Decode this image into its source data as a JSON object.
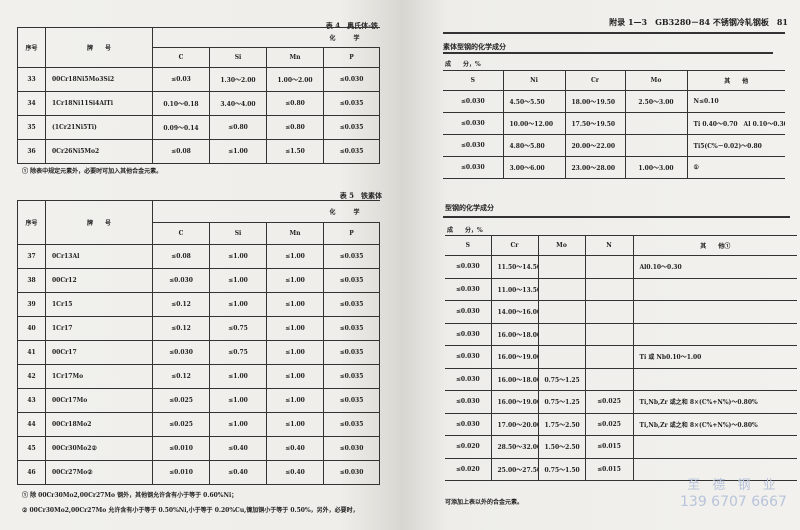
{
  "left_page": {
    "table4": {
      "caption": "表 4　奥氏体-铁",
      "header": {
        "no": "序号",
        "grade": "牌　　号",
        "group": "化　　　学",
        "cols": [
          "C",
          "Si",
          "Mn",
          "P"
        ]
      },
      "rows": [
        [
          "33",
          "00Cr18Ni5Mo3Si2",
          "≤0.03",
          "1.30～2.00",
          "1.00～2.00",
          "≤0.030"
        ],
        [
          "34",
          "1Cr18Ni11Si4AlTi",
          "0.10～0.18",
          "3.40～4.00",
          "≤0.80",
          "≤0.035"
        ],
        [
          "35",
          "(1Cr21Ni5Ti)",
          "0.09～0.14",
          "≤0.80",
          "≤0.80",
          "≤0.035"
        ],
        [
          "36",
          "0Cr26Ni5Mo2",
          "≤0.08",
          "≤1.00",
          "≤1.50",
          "≤0.035"
        ]
      ],
      "footnote": "① 除表中规定元素外，必要时可加入其他合金元素。"
    },
    "table5": {
      "caption": "表 5　铁素体",
      "header": {
        "no": "序号",
        "grade": "牌　　号",
        "group": "化　　　学",
        "cols": [
          "C",
          "Si",
          "Mn",
          "P"
        ]
      },
      "rows": [
        [
          "37",
          "0Cr13Al",
          "≤0.08",
          "≤1.00",
          "≤1.00",
          "≤0.035"
        ],
        [
          "38",
          "00Cr12",
          "≤0.030",
          "≤1.00",
          "≤1.00",
          "≤0.035"
        ],
        [
          "39",
          "1Cr15",
          "≤0.12",
          "≤1.00",
          "≤1.00",
          "≤0.035"
        ],
        [
          "40",
          "1Cr17",
          "≤0.12",
          "≤0.75",
          "≤1.00",
          "≤0.035"
        ],
        [
          "41",
          "00Cr17",
          "≤0.030",
          "≤0.75",
          "≤1.00",
          "≤0.035"
        ],
        [
          "42",
          "1Cr17Mo",
          "≤0.12",
          "≤1.00",
          "≤1.00",
          "≤0.035"
        ],
        [
          "43",
          "00Cr17Mo",
          "≤0.025",
          "≤1.00",
          "≤1.00",
          "≤0.035"
        ],
        [
          "44",
          "00Cr18Mo2",
          "≤0.025",
          "≤1.00",
          "≤1.00",
          "≤0.035"
        ],
        [
          "45",
          "00Cr30Mo2②",
          "≤0.010",
          "≤0.40",
          "≤0.40",
          "≤0.030"
        ],
        [
          "46",
          "00Cr27Mo②",
          "≤0.010",
          "≤0.40",
          "≤0.40",
          "≤0.030"
        ]
      ],
      "footnotes": [
        "① 除 00Cr30Mo2,00Cr27Mo 钢外，其他钢允许含有小于等于 0.60%Ni；",
        "② 00Cr30Mo2,00Cr27Mo 允许含有小于等于 0.50%Ni,小于等于 0.20%Cu,镍加铜小于等于 0.50%，另外，必要时，"
      ]
    }
  },
  "right_page": {
    "running_header": "附录 1—3　GB3280－84 不锈钢冷轧钢板　81",
    "table4_cont": {
      "caption": "素体型钢的化学成分",
      "unit": "成　　分，%",
      "cols": [
        "S",
        "Ni",
        "Cr",
        "Mo",
        "其　　他"
      ],
      "rows": [
        [
          "≤0.030",
          "4.50～5.50",
          "18.00～19.50",
          "2.50～3.00",
          "N≤0.10"
        ],
        [
          "≤0.030",
          "10.00～12.00",
          "17.50～19.50",
          "",
          "Ti 0.40～0.70　Al 0.10～0.30"
        ],
        [
          "≤0.030",
          "4.80～5.80",
          "20.00～22.00",
          "",
          "Ti5(C%－0.02)～0.80"
        ],
        [
          "≤0.030",
          "3.00～6.00",
          "23.00～28.00",
          "1.00～3.00",
          "①"
        ]
      ]
    },
    "table5_cont": {
      "caption": "型钢的化学成分",
      "unit": "成　　分，%",
      "cols": [
        "S",
        "Cr",
        "Mo",
        "N",
        "其　　他①"
      ],
      "rows": [
        [
          "≤0.030",
          "11.50～14.50",
          "",
          "",
          "Al0.10～0.30"
        ],
        [
          "≤0.030",
          "11.00～13.50",
          "",
          "",
          ""
        ],
        [
          "≤0.030",
          "14.00～16.00",
          "",
          "",
          ""
        ],
        [
          "≤0.030",
          "16.00～18.00",
          "",
          "",
          ""
        ],
        [
          "≤0.030",
          "16.00～19.00",
          "",
          "",
          "Ti 或 Nb0.10～1.00"
        ],
        [
          "≤0.030",
          "16.00～18.00",
          "0.75～1.25",
          "",
          ""
        ],
        [
          "≤0.030",
          "16.00～19.00",
          "0.75～1.25",
          "≤0.025",
          "Ti,Nb,Zr 或之和 8×(C%+N%)～0.80%"
        ],
        [
          "≤0.030",
          "17.00～20.00",
          "1.75～2.50",
          "≤0.025",
          "Ti,Nb,Zr 或之和 8×(C%+N%)～0.80%"
        ],
        [
          "≤0.020",
          "28.50～32.00",
          "1.50～2.50",
          "≤0.015",
          ""
        ],
        [
          "≤0.020",
          "25.00～27.50",
          "0.75～1.50",
          "≤0.015",
          ""
        ]
      ],
      "footnote": "可添加上表以外的合金元素。"
    }
  },
  "watermark": {
    "line1": "至 德 钢 业",
    "line2": "139 6707 6667"
  }
}
